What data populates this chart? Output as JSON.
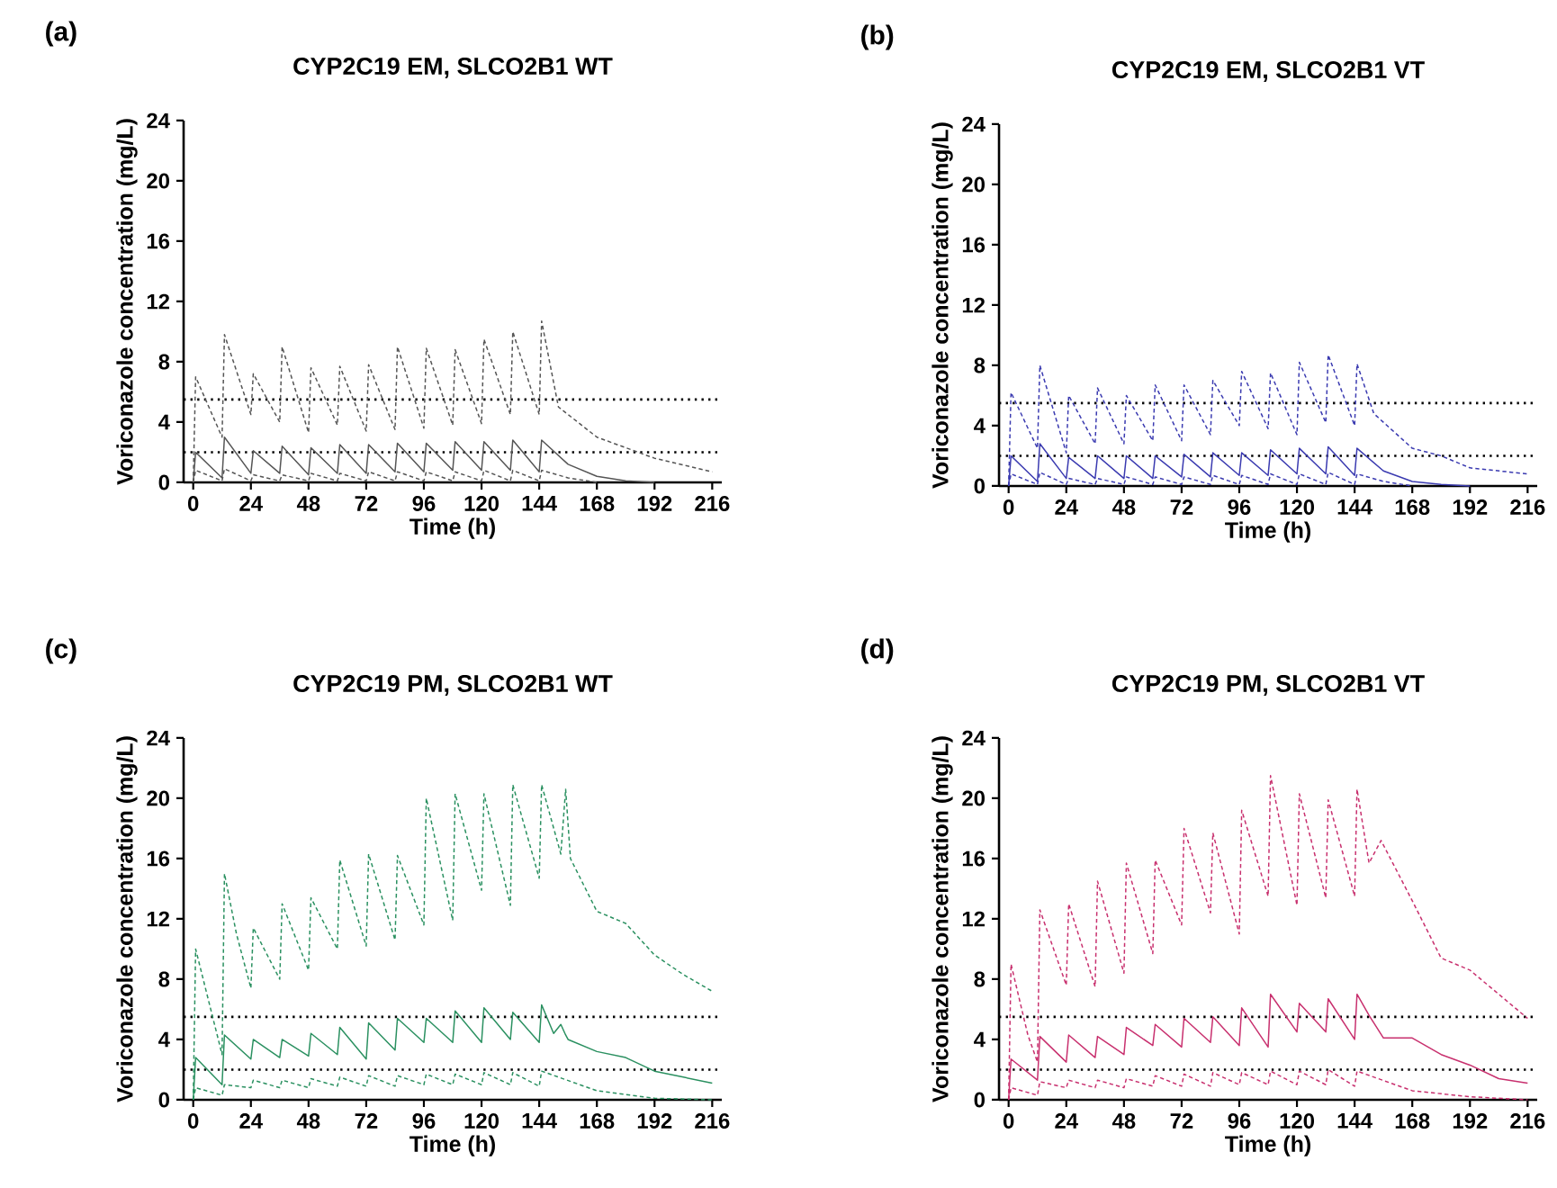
{
  "chart_data": [
    {
      "type": "line",
      "title": "CYP2C19 EM, SLCO2B1 WT",
      "xlabel": "Time (h)",
      "ylabel": "Voriconazole concentration (mg/L)",
      "annotations": [
        "(a)"
      ],
      "xlim": [
        -4,
        220
      ],
      "ylim": [
        0,
        24
      ],
      "xticks": [
        0,
        24,
        48,
        72,
        96,
        120,
        144,
        168,
        192,
        216
      ],
      "yticks": [
        0,
        4,
        8,
        12,
        16,
        20,
        24
      ],
      "series": [
        {
          "color": "#555555",
          "line_style": "solid",
          "x": [
            0,
            1,
            12,
            13,
            24,
            25,
            36,
            37,
            48,
            49,
            60,
            61,
            72,
            73,
            84,
            85,
            96,
            97,
            108,
            109,
            120,
            121,
            132,
            133,
            144,
            145,
            156,
            168,
            180,
            192
          ],
          "values": [
            0,
            2.0,
            0.3,
            3.0,
            0.6,
            2.1,
            0.6,
            2.4,
            0.5,
            2.3,
            0.6,
            2.5,
            0.6,
            2.5,
            0.7,
            2.6,
            0.7,
            2.6,
            0.8,
            2.7,
            0.8,
            2.7,
            0.8,
            2.8,
            0.7,
            2.8,
            1.2,
            0.4,
            0.1,
            0
          ]
        },
        {
          "color": "#555555",
          "line_style": "dashed",
          "x": [
            0,
            1,
            12,
            13,
            24,
            25,
            36,
            37,
            48,
            49,
            60,
            61,
            72,
            73,
            84,
            85,
            96,
            97,
            108,
            109,
            120,
            121,
            132,
            133,
            144,
            145,
            152,
            168,
            192,
            216
          ],
          "values": [
            0,
            7.0,
            3.0,
            9.8,
            4.5,
            7.2,
            4.0,
            9.0,
            3.3,
            7.6,
            3.8,
            7.7,
            3.4,
            7.8,
            3.5,
            9.0,
            3.6,
            8.9,
            3.8,
            8.8,
            3.9,
            9.5,
            4.5,
            10.0,
            4.5,
            10.7,
            5.0,
            3.0,
            1.6,
            0.7
          ]
        },
        {
          "color": "#555555",
          "line_style": "dashed",
          "x": [
            0,
            1,
            12,
            13,
            24,
            25,
            36,
            37,
            48,
            49,
            60,
            61,
            72,
            73,
            84,
            85,
            96,
            97,
            108,
            109,
            120,
            121,
            132,
            133,
            144,
            145,
            156,
            168
          ],
          "values": [
            0,
            0.8,
            0.1,
            0.9,
            0.1,
            0.5,
            0.1,
            0.5,
            0.1,
            0.6,
            0.1,
            0.6,
            0.1,
            0.7,
            0.1,
            0.7,
            0.1,
            0.7,
            0.1,
            0.7,
            0.1,
            0.8,
            0.1,
            0.8,
            0.1,
            0.8,
            0.3,
            0
          ]
        }
      ],
      "ref_lines": [
        {
          "axis": "y",
          "value": 5.5,
          "color": "#000000",
          "line_style": "dotted"
        },
        {
          "axis": "y",
          "value": 2,
          "color": "#000000",
          "line_style": "dotted"
        }
      ]
    },
    {
      "type": "line",
      "title": "CYP2C19 EM, SLCO2B1 VT",
      "xlabel": "Time (h)",
      "ylabel": "Voriconazole concentration (mg/L)",
      "annotations": [
        "(b)"
      ],
      "xlim": [
        -4,
        220
      ],
      "ylim": [
        0,
        24
      ],
      "xticks": [
        0,
        24,
        48,
        72,
        96,
        120,
        144,
        168,
        192,
        216
      ],
      "yticks": [
        0,
        4,
        8,
        12,
        16,
        20,
        24
      ],
      "series": [
        {
          "color": "#3a3ab0",
          "line_style": "solid",
          "x": [
            0,
            1,
            12,
            13,
            24,
            25,
            36,
            37,
            48,
            49,
            60,
            61,
            72,
            73,
            84,
            85,
            96,
            97,
            108,
            109,
            120,
            121,
            132,
            133,
            144,
            145,
            156,
            168,
            180,
            192
          ],
          "values": [
            0,
            2.0,
            0.3,
            2.8,
            0.5,
            1.9,
            0.5,
            2.0,
            0.5,
            2.0,
            0.5,
            2.0,
            0.6,
            2.1,
            0.6,
            2.2,
            0.7,
            2.2,
            0.7,
            2.4,
            0.8,
            2.5,
            0.8,
            2.6,
            0.7,
            2.5,
            1.0,
            0.3,
            0.1,
            0
          ]
        },
        {
          "color": "#3a3ab0",
          "line_style": "dashed",
          "x": [
            0,
            1,
            12,
            13,
            24,
            25,
            36,
            37,
            48,
            49,
            60,
            61,
            72,
            73,
            84,
            85,
            96,
            97,
            108,
            109,
            120,
            121,
            132,
            133,
            144,
            145,
            152,
            168,
            180,
            192,
            216
          ],
          "values": [
            0,
            6.2,
            2.5,
            8.0,
            2.2,
            6.0,
            2.8,
            6.5,
            2.8,
            6.0,
            3.0,
            6.7,
            3.0,
            6.7,
            3.4,
            7.0,
            4.0,
            7.6,
            3.8,
            7.5,
            3.4,
            8.2,
            4.2,
            8.7,
            4.0,
            8.1,
            4.8,
            2.5,
            2.0,
            1.2,
            0.8
          ]
        },
        {
          "color": "#3a3ab0",
          "line_style": "dashed",
          "x": [
            0,
            1,
            12,
            13,
            24,
            25,
            36,
            37,
            48,
            49,
            60,
            61,
            72,
            73,
            84,
            85,
            96,
            97,
            108,
            109,
            120,
            121,
            132,
            133,
            144,
            145,
            156,
            168
          ],
          "values": [
            0,
            0.8,
            0.1,
            0.9,
            0.1,
            0.5,
            0.1,
            0.5,
            0.1,
            0.6,
            0.1,
            0.6,
            0.1,
            0.6,
            0.1,
            0.7,
            0.1,
            0.7,
            0.1,
            0.8,
            0.1,
            0.8,
            0.1,
            0.9,
            0.1,
            0.8,
            0.3,
            0
          ]
        }
      ],
      "ref_lines": [
        {
          "axis": "y",
          "value": 5.5,
          "color": "#000000",
          "line_style": "dotted"
        },
        {
          "axis": "y",
          "value": 2,
          "color": "#000000",
          "line_style": "dotted"
        }
      ]
    },
    {
      "type": "line",
      "title": "CYP2C19 PM, SLCO2B1 WT",
      "xlabel": "Time (h)",
      "ylabel": "Voriconazole concentration (mg/L)",
      "annotations": [
        "(c)"
      ],
      "xlim": [
        -4,
        220
      ],
      "ylim": [
        0,
        24
      ],
      "xticks": [
        0,
        24,
        48,
        72,
        96,
        120,
        144,
        168,
        192,
        216
      ],
      "yticks": [
        0,
        4,
        8,
        12,
        16,
        20,
        24
      ],
      "series": [
        {
          "color": "#2a9060",
          "line_style": "solid",
          "x": [
            0,
            1,
            12,
            13,
            24,
            25,
            36,
            37,
            48,
            49,
            60,
            61,
            72,
            73,
            84,
            85,
            96,
            97,
            108,
            109,
            120,
            121,
            132,
            133,
            144,
            145,
            150,
            153,
            155,
            156,
            168,
            180,
            192,
            204,
            216
          ],
          "values": [
            0,
            2.8,
            1.0,
            4.3,
            2.7,
            4.0,
            2.8,
            4.0,
            2.9,
            4.4,
            3.0,
            4.8,
            2.7,
            5.1,
            3.3,
            5.4,
            3.8,
            5.4,
            3.8,
            5.9,
            3.8,
            6.1,
            4.0,
            5.8,
            3.8,
            6.3,
            4.4,
            5.0,
            4.3,
            4.0,
            3.2,
            2.8,
            1.9,
            1.5,
            1.1
          ]
        },
        {
          "color": "#2a9060",
          "line_style": "dashed",
          "x": [
            0,
            1,
            12,
            13,
            18,
            24,
            25,
            36,
            37,
            48,
            49,
            60,
            61,
            72,
            73,
            84,
            85,
            96,
            97,
            108,
            109,
            120,
            121,
            132,
            133,
            144,
            145,
            153,
            155,
            157,
            168,
            180,
            192,
            204,
            216
          ],
          "values": [
            0,
            10,
            3.0,
            15,
            11,
            7.4,
            11.4,
            8,
            13,
            8.6,
            13.4,
            10,
            15.9,
            10.2,
            16.3,
            10.6,
            16.2,
            11.6,
            20.0,
            11.9,
            20.3,
            13.9,
            20.3,
            12.9,
            20.9,
            14.7,
            20.9,
            16.3,
            20.6,
            16.0,
            12.5,
            11.7,
            9.6,
            8.3,
            7.2
          ]
        },
        {
          "color": "#2a9060",
          "line_style": "dashed",
          "x": [
            0,
            1,
            12,
            13,
            24,
            25,
            36,
            37,
            48,
            49,
            60,
            61,
            72,
            73,
            84,
            85,
            96,
            97,
            108,
            109,
            120,
            121,
            132,
            133,
            144,
            145,
            168,
            192,
            216
          ],
          "values": [
            0,
            0.8,
            0.3,
            1.0,
            0.8,
            1.3,
            0.8,
            1.3,
            0.8,
            1.4,
            0.9,
            1.5,
            0.9,
            1.6,
            0.9,
            1.6,
            1.0,
            1.7,
            1.0,
            1.7,
            1.0,
            1.8,
            1.0,
            1.8,
            0.9,
            1.9,
            0.6,
            0.1,
            0
          ]
        }
      ],
      "ref_lines": [
        {
          "axis": "y",
          "value": 5.5,
          "color": "#000000",
          "line_style": "dotted"
        },
        {
          "axis": "y",
          "value": 2,
          "color": "#000000",
          "line_style": "dotted"
        }
      ]
    },
    {
      "type": "line",
      "title": "CYP2C19 PM, SLCO2B1 VT",
      "xlabel": "Time (h)",
      "ylabel": "Voriconazole concentration (mg/L)",
      "annotations": [
        "(d)"
      ],
      "xlim": [
        -4,
        220
      ],
      "ylim": [
        0,
        24
      ],
      "xticks": [
        0,
        24,
        48,
        72,
        96,
        120,
        144,
        168,
        192,
        216
      ],
      "yticks": [
        0,
        4,
        8,
        12,
        16,
        20,
        24
      ],
      "series": [
        {
          "color": "#c8306e",
          "line_style": "solid",
          "x": [
            0,
            1,
            12,
            13,
            24,
            25,
            36,
            37,
            48,
            49,
            60,
            61,
            72,
            73,
            84,
            85,
            96,
            97,
            108,
            109,
            120,
            121,
            132,
            133,
            144,
            145,
            150,
            156,
            168,
            180,
            192,
            204,
            216
          ],
          "values": [
            0,
            2.7,
            1.3,
            4.2,
            2.5,
            4.3,
            2.8,
            4.2,
            3.0,
            4.8,
            3.6,
            5.0,
            3.5,
            5.4,
            3.8,
            5.5,
            3.6,
            6.1,
            3.5,
            7.0,
            4.5,
            6.4,
            4.5,
            6.7,
            4.0,
            7.0,
            5.6,
            4.1,
            4.1,
            3.0,
            2.3,
            1.4,
            1.1
          ]
        },
        {
          "color": "#c8306e",
          "line_style": "dashed",
          "x": [
            0,
            1,
            8,
            12,
            13,
            24,
            25,
            36,
            37,
            48,
            49,
            60,
            61,
            72,
            73,
            84,
            85,
            96,
            97,
            108,
            109,
            120,
            121,
            132,
            133,
            144,
            145,
            150,
            155,
            168,
            180,
            192,
            204,
            216
          ],
          "values": [
            0,
            9.0,
            4.3,
            2.5,
            12.6,
            7.6,
            13.0,
            7.5,
            14.5,
            8.4,
            15.7,
            9.7,
            15.9,
            11.6,
            18.0,
            12.4,
            17.7,
            11.0,
            19.2,
            13.5,
            21.5,
            12.9,
            20.3,
            13.4,
            19.9,
            13.5,
            20.6,
            15.7,
            17.2,
            13.2,
            9.4,
            8.6,
            7.0,
            5.4
          ]
        },
        {
          "color": "#c8306e",
          "line_style": "dashed",
          "x": [
            0,
            1,
            12,
            13,
            24,
            25,
            36,
            37,
            48,
            49,
            60,
            61,
            72,
            73,
            84,
            85,
            96,
            97,
            108,
            109,
            120,
            121,
            132,
            133,
            144,
            145,
            168,
            192,
            216
          ],
          "values": [
            0,
            0.8,
            0.3,
            1.2,
            0.8,
            1.3,
            0.8,
            1.3,
            0.8,
            1.4,
            0.9,
            1.6,
            0.9,
            1.7,
            0.9,
            1.8,
            1.0,
            1.8,
            1.0,
            1.9,
            1.0,
            1.9,
            1.0,
            2.0,
            0.9,
            1.9,
            0.6,
            0.2,
            0
          ]
        }
      ],
      "ref_lines": [
        {
          "axis": "y",
          "value": 5.5,
          "color": "#000000",
          "line_style": "dotted"
        },
        {
          "axis": "y",
          "value": 2,
          "color": "#000000",
          "line_style": "dotted"
        }
      ]
    }
  ]
}
